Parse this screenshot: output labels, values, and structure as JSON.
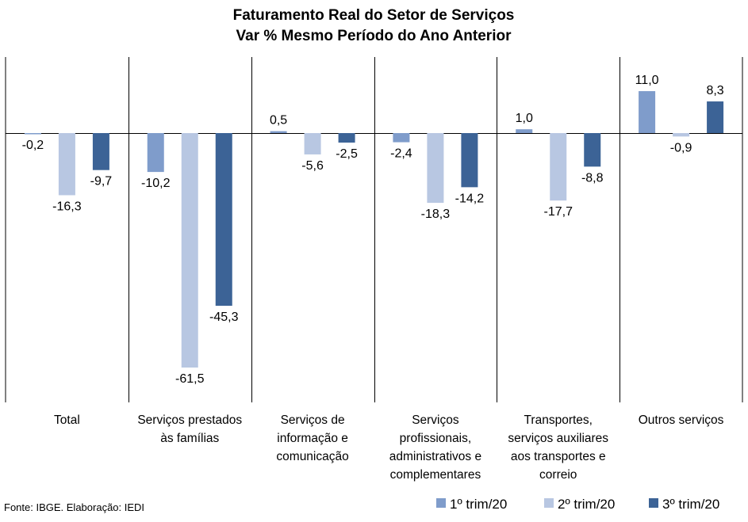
{
  "chart_data": {
    "type": "bar",
    "title": [
      "Faturamento Real do Setor de Serviços",
      "Var % Mesmo Período do Ano Anterior"
    ],
    "categories": [
      [
        "Total"
      ],
      [
        "Serviços prestados",
        "às famílias"
      ],
      [
        "Serviços de",
        "informação e",
        "comunicação"
      ],
      [
        "Serviços",
        "profissionais,",
        "administrativos e",
        "complementares"
      ],
      [
        "Transportes,",
        "serviços auxiliares",
        "aos transportes e",
        "correio"
      ],
      [
        "Outros serviços"
      ]
    ],
    "series": [
      {
        "name": "1º trim/20",
        "color": "#7f9ccb",
        "values": [
          -0.2,
          -10.2,
          0.5,
          -2.4,
          1.0,
          11.0
        ],
        "labels": [
          "-0,2",
          "-10,2",
          "0,5",
          "-2,4",
          "1,0",
          "11,0"
        ]
      },
      {
        "name": "2º trim/20",
        "color": "#b8c7e2",
        "values": [
          -16.3,
          -61.5,
          -5.6,
          -18.3,
          -17.7,
          -0.9
        ],
        "labels": [
          "-16,3",
          "-61,5",
          "-5,6",
          "-18,3",
          "-17,7",
          "-0,9"
        ]
      },
      {
        "name": "3º trim/20",
        "color": "#3c6396",
        "values": [
          -9.7,
          -45.3,
          -2.5,
          -14.2,
          -8.8,
          8.3
        ],
        "labels": [
          "-9,7",
          "-45,3",
          "-2,5",
          "-14,2",
          "-8,8",
          "8,3"
        ]
      }
    ],
    "ylim": [
      -70,
      20
    ],
    "grid": false,
    "legend_position": "bottom-right",
    "source": "Fonte: IBGE. Elaboração: IEDI"
  }
}
